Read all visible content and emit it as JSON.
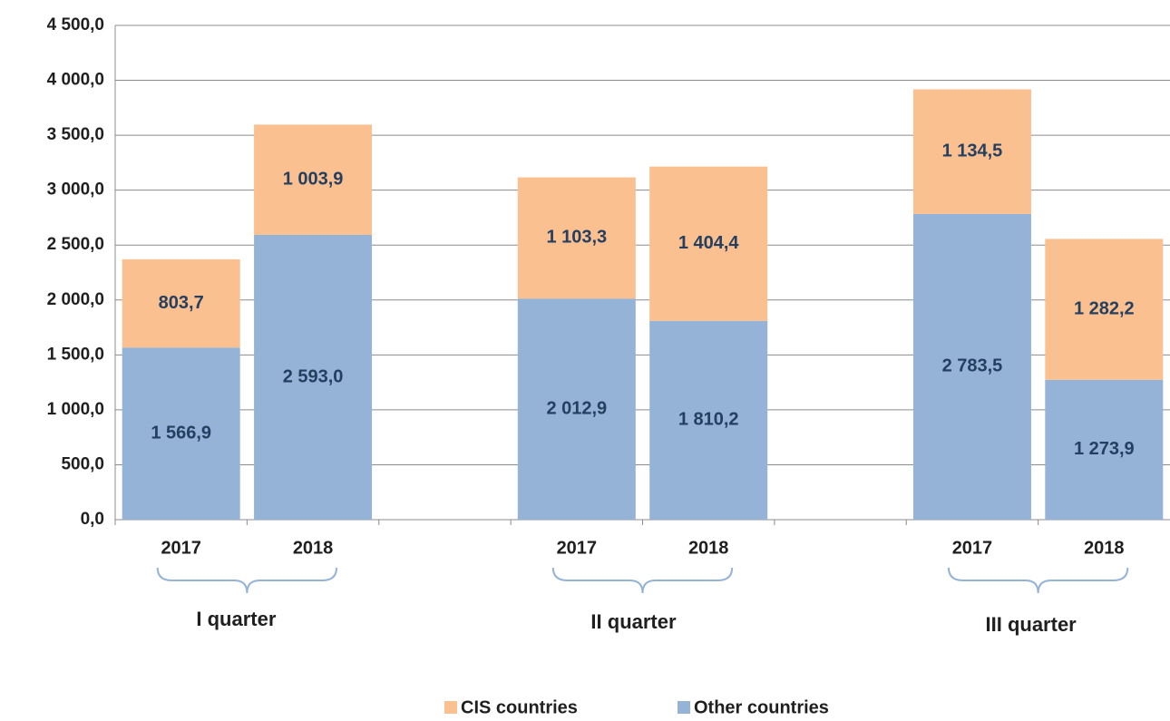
{
  "chart_data": {
    "type": "stacked_bar",
    "categories": [
      "2017",
      "2018",
      null,
      "2017",
      "2018",
      null,
      "2017",
      "2018"
    ],
    "groups": [
      "I quarter",
      "II quarter",
      "III quarter"
    ],
    "series": [
      {
        "name": "Other countries",
        "color": "#95b3d7",
        "values": [
          1566.9,
          2593.0,
          null,
          2012.9,
          1810.2,
          null,
          2783.5,
          1273.9
        ],
        "value_labels": [
          "1 566,9",
          "2 593,0",
          null,
          "2 012,9",
          "1 810,2",
          null,
          "2 783,5",
          "1 273,9"
        ]
      },
      {
        "name": "CIS countries",
        "color": "#fac090",
        "values": [
          803.7,
          1003.9,
          null,
          1103.3,
          1404.4,
          null,
          1134.5,
          1282.2
        ],
        "value_labels": [
          "803,7",
          "1 003,9",
          null,
          "1 103,3",
          "1 404,4",
          null,
          "1 134,5",
          "1 282,2"
        ]
      }
    ],
    "ylim": [
      0,
      4500
    ],
    "yticks": [
      {
        "value": 0,
        "label": "0,0"
      },
      {
        "value": 500,
        "label": "500,0"
      },
      {
        "value": 1000,
        "label": "1 000,0"
      },
      {
        "value": 1500,
        "label": "1 500,0"
      },
      {
        "value": 2000,
        "label": "2 000,0"
      },
      {
        "value": 2500,
        "label": "2 500,0"
      },
      {
        "value": 3000,
        "label": "3 000,0"
      },
      {
        "value": 3500,
        "label": "3 500,0"
      },
      {
        "value": 4000,
        "label": "4 000,0"
      },
      {
        "value": 4500,
        "label": "4 500,0"
      }
    ],
    "grid": true,
    "legend": "bottom"
  }
}
